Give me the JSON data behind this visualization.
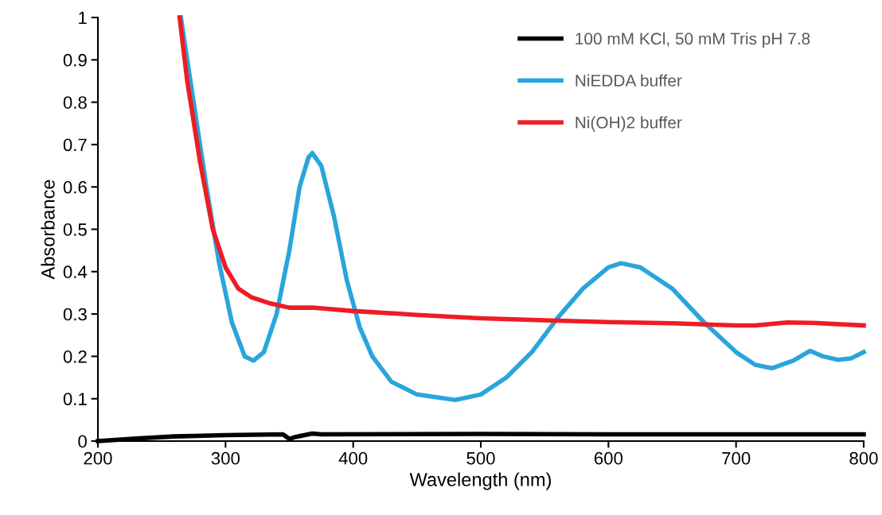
{
  "chart_data": {
    "type": "line",
    "xlabel": "Wavelength (nm)",
    "ylabel": "Absorbance",
    "xlim": [
      200,
      800
    ],
    "xticks": [
      200,
      300,
      400,
      500,
      600,
      700,
      800
    ],
    "ylim": [
      0,
      1
    ],
    "yticks": [
      0,
      0.1,
      0.2,
      0.3,
      0.4,
      0.5,
      0.6,
      0.7,
      0.8,
      0.9,
      1
    ],
    "grid": false,
    "legend": "top right",
    "series": [
      {
        "name": "100 mM KCl, 50 mM Tris pH 7.8",
        "color": "#000000",
        "x": [
          200,
          230,
          260,
          300,
          345,
          350,
          355,
          368,
          375,
          500,
          600,
          700,
          800
        ],
        "values": [
          0,
          0.006,
          0.011,
          0.014,
          0.016,
          0.005,
          0.01,
          0.018,
          0.016,
          0.017,
          0.016,
          0.016,
          0.016
        ]
      },
      {
        "name": "NiEDDA buffer",
        "color": "#29a5dc",
        "x": [
          265,
          275,
          285,
          295,
          305,
          315,
          322,
          330,
          340,
          350,
          358,
          365,
          368,
          375,
          385,
          395,
          405,
          415,
          430,
          450,
          480,
          500,
          520,
          540,
          560,
          580,
          600,
          610,
          625,
          650,
          675,
          700,
          715,
          728,
          745,
          758,
          768,
          780,
          790,
          800
        ],
        "values": [
          1.0,
          0.8,
          0.6,
          0.42,
          0.28,
          0.2,
          0.19,
          0.21,
          0.3,
          0.45,
          0.6,
          0.67,
          0.68,
          0.65,
          0.53,
          0.38,
          0.27,
          0.2,
          0.14,
          0.11,
          0.097,
          0.11,
          0.15,
          0.21,
          0.29,
          0.36,
          0.41,
          0.42,
          0.41,
          0.36,
          0.28,
          0.21,
          0.18,
          0.172,
          0.19,
          0.213,
          0.2,
          0.192,
          0.195,
          0.21
        ]
      },
      {
        "name": "Ni(OH)2 buffer",
        "color": "#ee1c25",
        "x": [
          264,
          270,
          280,
          290,
          300,
          310,
          320,
          335,
          350,
          368,
          400,
          450,
          500,
          550,
          600,
          650,
          700,
          715,
          740,
          760,
          800
        ],
        "values": [
          1.0,
          0.85,
          0.66,
          0.5,
          0.41,
          0.36,
          0.34,
          0.325,
          0.315,
          0.315,
          0.307,
          0.298,
          0.29,
          0.285,
          0.281,
          0.278,
          0.273,
          0.273,
          0.28,
          0.279,
          0.273
        ]
      }
    ]
  }
}
